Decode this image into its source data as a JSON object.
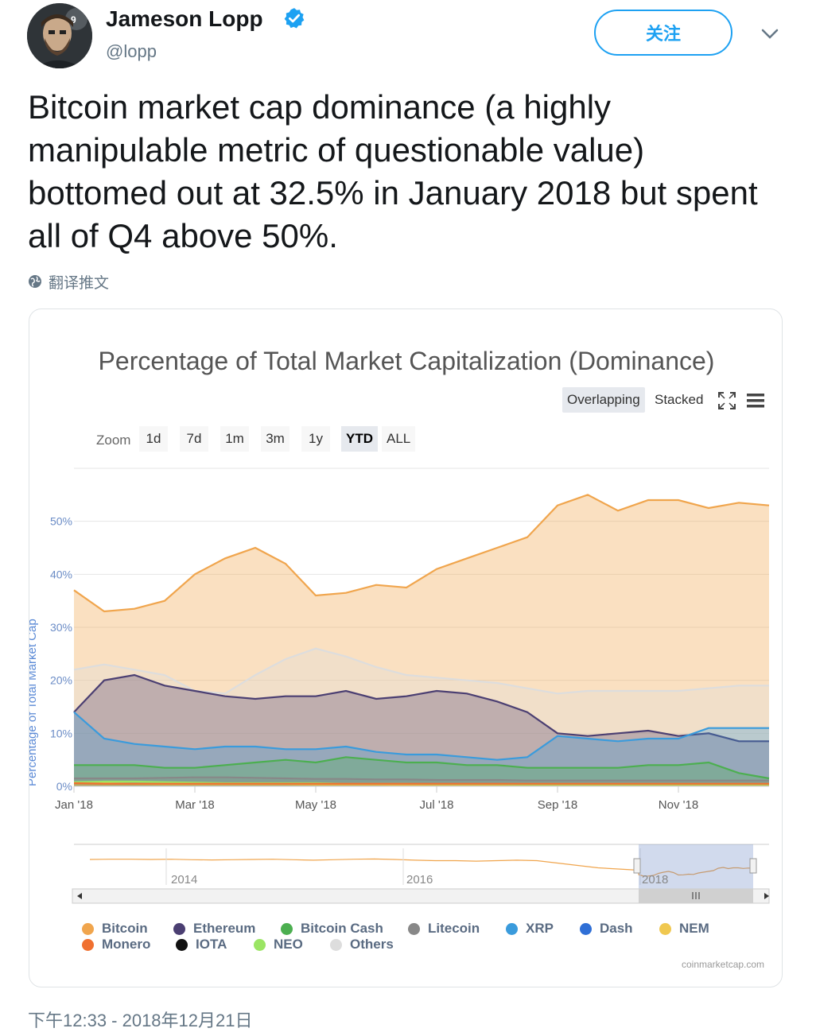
{
  "user": {
    "name": "Jameson Lopp",
    "handle": "@lopp",
    "avatar_badge": "9"
  },
  "follow_label": "关注",
  "tweet": {
    "text": "Bitcoin market cap dominance (a highly manipulable metric of questionable value) bottomed out at 32.5% in January 2018 but spent all of Q4 above 50%."
  },
  "translate_label": "翻译推文",
  "timestamp": "下午12:33 - 2018年12月21日",
  "chart": {
    "mode_buttons": [
      "Overlapping",
      "Stacked"
    ],
    "active_mode": "Overlapping",
    "zoom_label": "Zoom",
    "zoom_buttons": [
      "1d",
      "7d",
      "1m",
      "3m",
      "1y",
      "YTD",
      "ALL"
    ],
    "active_zoom": "YTD",
    "navigator_labels": [
      "2014",
      "2016",
      "2018"
    ],
    "credit": "coinmarketcap.com",
    "colors": {
      "accent": "#1da1f2",
      "bitcoin": "#f0a54d",
      "ethereum": "#4b3f72",
      "bitcoin_cash": "#4caf50",
      "litecoin": "#888888",
      "xrp": "#3a9bdc",
      "dash": "#2f6fd6",
      "nem": "#f0c850",
      "monero": "#f07030",
      "iota": "#111111",
      "neo": "#9be564",
      "others": "#dddddd"
    }
  },
  "chart_data": {
    "type": "area",
    "title": "Percentage of Total Market Capitalization (Dominance)",
    "ylabel": "Percentage of Total Market Cap",
    "xlabel": "",
    "ylim": [
      0,
      60
    ],
    "y_ticks": [
      "0%",
      "10%",
      "20%",
      "30%",
      "40%",
      "50%"
    ],
    "x_ticks": [
      "Jan '18",
      "Mar '18",
      "May '18",
      "Jul '18",
      "Sep '18",
      "Nov '18"
    ],
    "x": [
      "Jan 1",
      "Jan 15",
      "Feb 1",
      "Feb 15",
      "Mar 1",
      "Mar 15",
      "Apr 1",
      "Apr 15",
      "May 1",
      "May 15",
      "Jun 1",
      "Jun 15",
      "Jul 1",
      "Jul 15",
      "Aug 1",
      "Aug 15",
      "Sep 1",
      "Sep 15",
      "Oct 1",
      "Oct 15",
      "Nov 1",
      "Nov 15",
      "Dec 1",
      "Dec 20"
    ],
    "series": [
      {
        "name": "Bitcoin",
        "values": [
          37,
          33,
          33.5,
          35,
          40,
          43,
          45,
          42,
          36,
          36.5,
          38,
          37.5,
          41,
          43,
          45,
          47,
          53,
          55,
          52,
          54,
          54,
          52.5,
          53.5,
          53
        ]
      },
      {
        "name": "Others",
        "values": [
          22,
          23,
          22,
          21,
          18,
          17.5,
          21,
          24,
          26,
          24.5,
          22.5,
          21,
          20.5,
          20,
          19.5,
          18.5,
          17.5,
          18,
          18,
          18,
          18,
          18.5,
          19,
          19
        ]
      },
      {
        "name": "Ethereum",
        "values": [
          14,
          20,
          21,
          19,
          18,
          17,
          16.5,
          17,
          17,
          18,
          16.5,
          17,
          18,
          17.5,
          16,
          14,
          10,
          9.5,
          10,
          10.5,
          9.5,
          10,
          8.5,
          8.5
        ]
      },
      {
        "name": "XRP",
        "values": [
          14,
          9,
          8,
          7.5,
          7,
          7.5,
          7.5,
          7,
          7,
          7.5,
          6.5,
          6,
          6,
          5.5,
          5,
          5.5,
          9.5,
          9,
          8.5,
          9,
          9,
          11,
          11,
          11
        ]
      },
      {
        "name": "Bitcoin Cash",
        "values": [
          4,
          4,
          4,
          3.5,
          3.5,
          4,
          4.5,
          5,
          4.5,
          5.5,
          5,
          4.5,
          4.5,
          4,
          4,
          3.5,
          3.5,
          3.5,
          3.5,
          4,
          4,
          4.5,
          2.5,
          1.5
        ]
      },
      {
        "name": "Litecoin",
        "values": [
          1.5,
          1.5,
          1.5,
          1.6,
          1.7,
          1.7,
          1.6,
          1.5,
          1.4,
          1.4,
          1.3,
          1.3,
          1.2,
          1.2,
          1.2,
          1.1,
          1.1,
          1.1,
          1.1,
          1.1,
          1.1,
          1.1,
          1.1,
          1.1
        ]
      },
      {
        "name": "NEM",
        "values": [
          0.7,
          0.6,
          0.5,
          0.4,
          0.4,
          0.4,
          0.4,
          0.4,
          0.3,
          0.3,
          0.3,
          0.2,
          0.2,
          0.2,
          0.2,
          0.2,
          0.2,
          0.2,
          0.2,
          0.2,
          0.2,
          0.2,
          0.2,
          0.2
        ]
      },
      {
        "name": "NEO",
        "values": [
          0.8,
          0.9,
          0.9,
          0.8,
          0.7,
          0.6,
          0.6,
          0.6,
          0.6,
          0.5,
          0.5,
          0.5,
          0.4,
          0.4,
          0.4,
          0.3,
          0.3,
          0.3,
          0.3,
          0.3,
          0.3,
          0.3,
          0.3,
          0.3
        ]
      },
      {
        "name": "Monero",
        "values": [
          0.6,
          0.5,
          0.5,
          0.5,
          0.5,
          0.5,
          0.5,
          0.5,
          0.5,
          0.5,
          0.5,
          0.5,
          0.5,
          0.5,
          0.5,
          0.5,
          0.5,
          0.5,
          0.5,
          0.5,
          0.5,
          0.5,
          0.5,
          0.5
        ]
      }
    ],
    "legend": [
      "Bitcoin",
      "Ethereum",
      "Bitcoin Cash",
      "Litecoin",
      "XRP",
      "Dash",
      "NEM",
      "Monero",
      "IOTA",
      "NEO",
      "Others"
    ],
    "grid": true,
    "legend_position": "bottom"
  }
}
